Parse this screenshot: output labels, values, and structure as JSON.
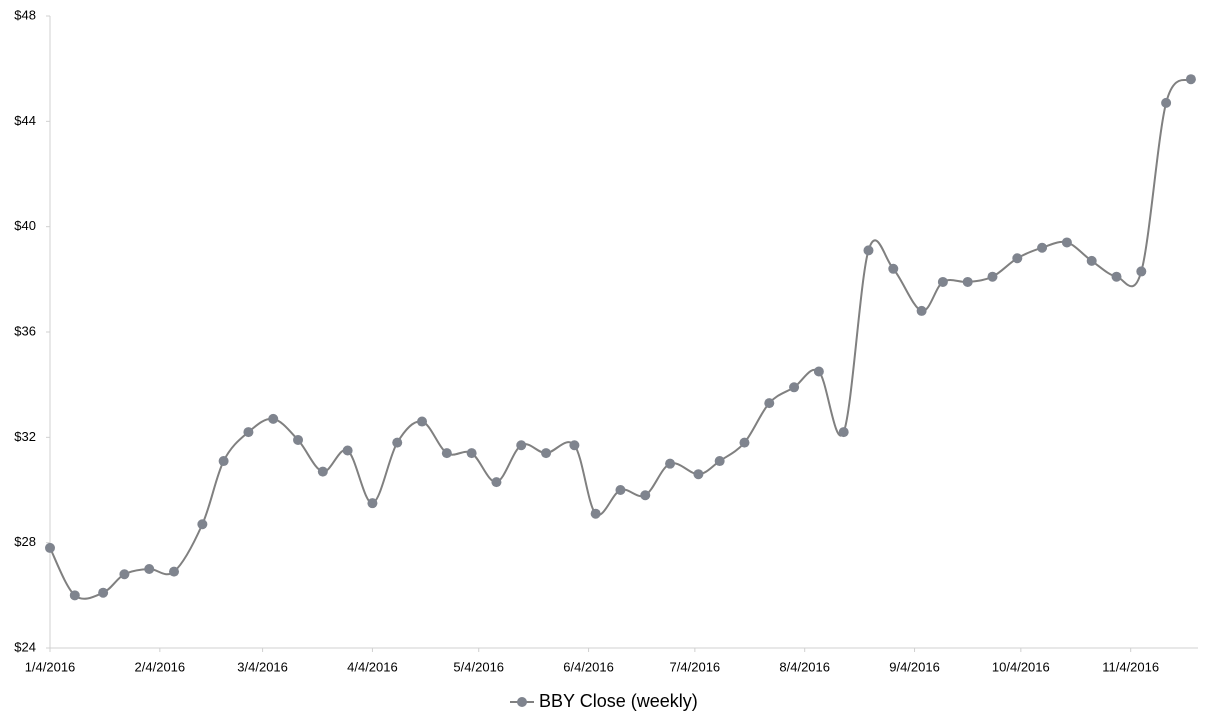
{
  "chart_data": {
    "type": "line",
    "x": [
      "1/4/2016",
      "1/11/2016",
      "1/19/2016",
      "1/25/2016",
      "2/1/2016",
      "2/8/2016",
      "2/16/2016",
      "2/22/2016",
      "2/29/2016",
      "3/7/2016",
      "3/14/2016",
      "3/21/2016",
      "3/28/2016",
      "4/4/2016",
      "4/11/2016",
      "4/18/2016",
      "4/25/2016",
      "5/2/2016",
      "5/9/2016",
      "5/16/2016",
      "5/23/2016",
      "5/31/2016",
      "6/6/2016",
      "6/13/2016",
      "6/20/2016",
      "6/27/2016",
      "7/5/2016",
      "7/11/2016",
      "7/18/2016",
      "7/25/2016",
      "8/1/2016",
      "8/8/2016",
      "8/15/2016",
      "8/22/2016",
      "8/29/2016",
      "9/6/2016",
      "9/12/2016",
      "9/19/2016",
      "9/26/2016",
      "10/3/2016",
      "10/10/2016",
      "10/17/2016",
      "10/24/2016",
      "10/31/2016",
      "11/7/2016",
      "11/14/2016",
      "11/21/2016"
    ],
    "series": [
      {
        "name": "BBY Close (weekly)",
        "color": "#7f848e",
        "values": [
          27.8,
          26.0,
          26.1,
          26.8,
          27.0,
          26.9,
          28.7,
          31.1,
          32.2,
          32.7,
          31.9,
          30.7,
          31.5,
          29.5,
          31.8,
          32.6,
          31.4,
          31.4,
          30.3,
          31.7,
          31.4,
          31.7,
          29.1,
          30.0,
          29.8,
          31.0,
          30.6,
          31.1,
          31.8,
          33.3,
          33.9,
          34.5,
          32.2,
          39.1,
          38.4,
          36.8,
          37.9,
          37.9,
          38.1,
          38.8,
          39.2,
          39.4,
          38.7,
          38.1,
          38.3,
          44.7,
          45.6
        ]
      }
    ],
    "xlim": [
      "1/4/2016",
      "11/23/2016"
    ],
    "xticks": [
      "1/4/2016",
      "2/4/2016",
      "3/4/2016",
      "4/4/2016",
      "5/4/2016",
      "6/4/2016",
      "7/4/2016",
      "8/4/2016",
      "9/4/2016",
      "10/4/2016",
      "11/4/2016"
    ],
    "ylim": [
      24,
      48
    ],
    "yticks": [
      {
        "value": 24,
        "label": "$24"
      },
      {
        "value": 28,
        "label": "$28"
      },
      {
        "value": 32,
        "label": "$32"
      },
      {
        "value": 36,
        "label": "$36"
      },
      {
        "value": 40,
        "label": "$40"
      },
      {
        "value": 44,
        "label": "$44"
      },
      {
        "value": 48,
        "label": "$48"
      }
    ],
    "smooth": true,
    "legend": "bottom"
  }
}
